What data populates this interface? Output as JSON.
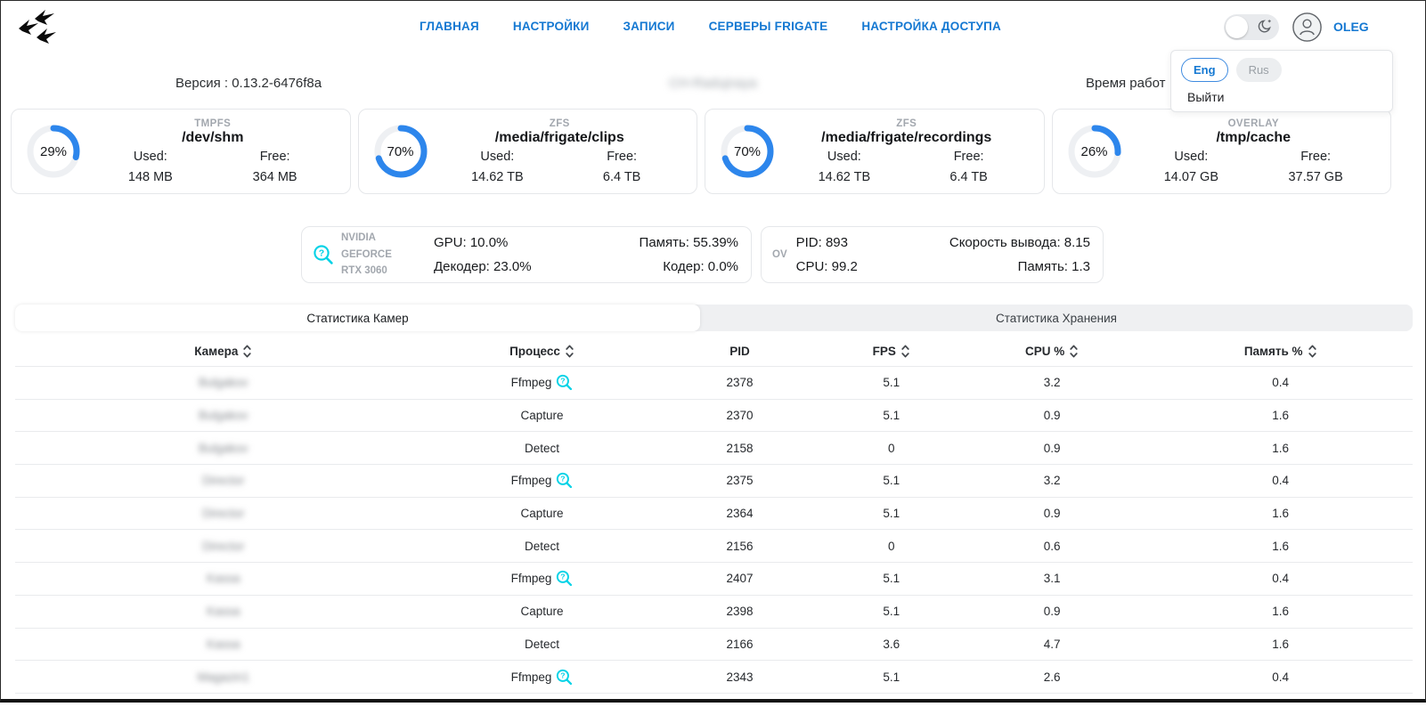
{
  "colors": {
    "accent_blue": "#1478d2",
    "donut_blue": "#2d86ec",
    "donut_track": "#eef0f3",
    "info_cyan": "#00d2e6"
  },
  "header": {
    "nav": [
      {
        "label": "ГЛАВНАЯ"
      },
      {
        "label": "НАСТРОЙКИ"
      },
      {
        "label": "ЗАПИСИ"
      },
      {
        "label": "СЕРВЕРЫ FRIGATE"
      },
      {
        "label": "НАСТРОЙКА ДОСТУПА"
      }
    ],
    "username": "OLEG"
  },
  "user_menu": {
    "lang_eng": "Eng",
    "lang_rus": "Rus",
    "logout": "Выйти"
  },
  "info_bar": {
    "version": "Версия : 0.13.2-6476f8a",
    "server_name": "CH-Radujnaya",
    "uptime_label": "Время работ"
  },
  "storage_cards": [
    {
      "fs_type": "TMPFS",
      "mount": "/dev/shm",
      "percent": 29,
      "used_label": "Used:",
      "free_label": "Free:",
      "used": "148 MB",
      "free": "364 MB"
    },
    {
      "fs_type": "ZFS",
      "mount": "/media/frigate/clips",
      "percent": 70,
      "used_label": "Used:",
      "free_label": "Free:",
      "used": "14.62 TB",
      "free": "6.4 TB"
    },
    {
      "fs_type": "ZFS",
      "mount": "/media/frigate/recordings",
      "percent": 70,
      "used_label": "Used:",
      "free_label": "Free:",
      "used": "14.62 TB",
      "free": "6.4 TB"
    },
    {
      "fs_type": "OVERLAY",
      "mount": "/tmp/cache",
      "percent": 26,
      "used_label": "Used:",
      "free_label": "Free:",
      "used": "14.07 GB",
      "free": "37.57 GB"
    }
  ],
  "gpu_card": {
    "name_line1": "NVIDIA GEFORCE",
    "name_line2": "RTX 3060",
    "gpu": "GPU: 10.0%",
    "decoder": "Декодер: 23.0%",
    "memory": "Память: 55.39%",
    "encoder": "Кодер: 0.0%"
  },
  "ov_card": {
    "label": "OV",
    "pid": "PID: 893",
    "cpu": "CPU: 99.2",
    "output_speed": "Скорость вывода: 8.15",
    "memory": "Память: 1.3"
  },
  "tabs": {
    "cameras": "Статистика Камер",
    "storage": "Статистика Хранения"
  },
  "table": {
    "columns": [
      {
        "label": "Камера",
        "sortable": true
      },
      {
        "label": "Процесс",
        "sortable": true
      },
      {
        "label": "PID",
        "sortable": false
      },
      {
        "label": "FPS",
        "sortable": true
      },
      {
        "label": "CPU %",
        "sortable": true
      },
      {
        "label": "Память %",
        "sortable": true
      }
    ],
    "rows": [
      {
        "camera": "Bulgakov",
        "process": "Ffmpeg",
        "has_info_icon": true,
        "pid": "2378",
        "fps": "5.1",
        "cpu": "3.2",
        "mem": "0.4"
      },
      {
        "camera": "Bulgakov",
        "process": "Capture",
        "has_info_icon": false,
        "pid": "2370",
        "fps": "5.1",
        "cpu": "0.9",
        "mem": "1.6"
      },
      {
        "camera": "Bulgakov",
        "process": "Detect",
        "has_info_icon": false,
        "pid": "2158",
        "fps": "0",
        "cpu": "0.9",
        "mem": "1.6"
      },
      {
        "camera": "Director",
        "process": "Ffmpeg",
        "has_info_icon": true,
        "pid": "2375",
        "fps": "5.1",
        "cpu": "3.2",
        "mem": "0.4"
      },
      {
        "camera": "Director",
        "process": "Capture",
        "has_info_icon": false,
        "pid": "2364",
        "fps": "5.1",
        "cpu": "0.9",
        "mem": "1.6"
      },
      {
        "camera": "Director",
        "process": "Detect",
        "has_info_icon": false,
        "pid": "2156",
        "fps": "0",
        "cpu": "0.6",
        "mem": "1.6"
      },
      {
        "camera": "Kassa",
        "process": "Ffmpeg",
        "has_info_icon": true,
        "pid": "2407",
        "fps": "5.1",
        "cpu": "3.1",
        "mem": "0.4"
      },
      {
        "camera": "Kassa",
        "process": "Capture",
        "has_info_icon": false,
        "pid": "2398",
        "fps": "5.1",
        "cpu": "0.9",
        "mem": "1.6"
      },
      {
        "camera": "Kassa",
        "process": "Detect",
        "has_info_icon": false,
        "pid": "2166",
        "fps": "3.6",
        "cpu": "4.7",
        "mem": "1.6"
      },
      {
        "camera": "Magazin1",
        "process": "Ffmpeg",
        "has_info_icon": true,
        "pid": "2343",
        "fps": "5.1",
        "cpu": "2.6",
        "mem": "0.4"
      }
    ]
  }
}
